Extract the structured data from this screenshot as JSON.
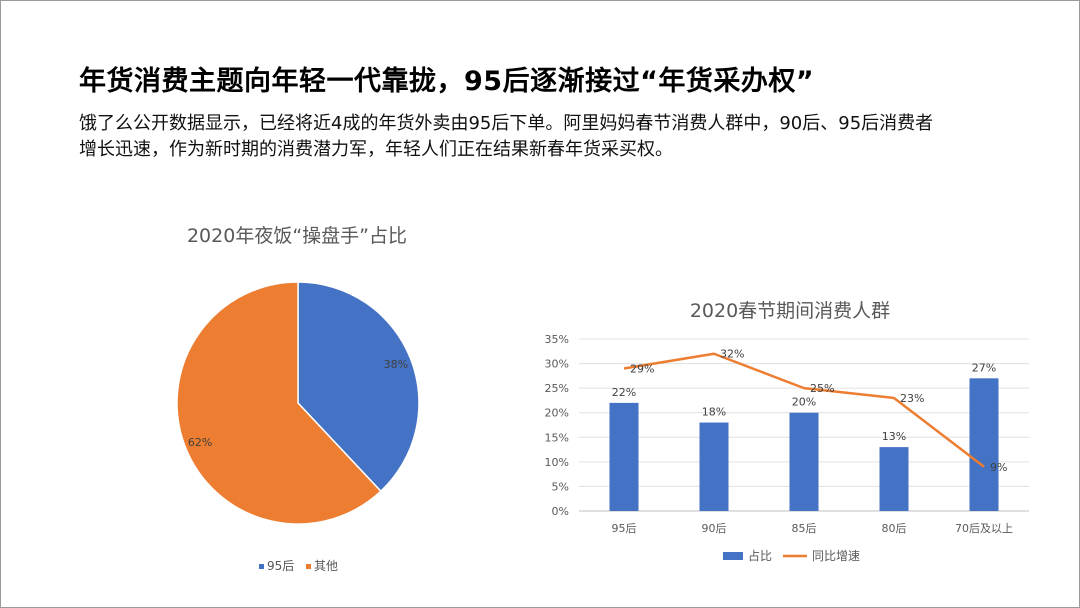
{
  "slide": {
    "headline": "年货消费主题向年轻一代靠拢，95后逐渐接过“年货采办权”",
    "paragraph_lines": [
      "饿了么公开数据显示，已经将近4成的年货外卖由95后下单。阿里妈妈春节消费人群中，90后、95后消费者",
      "增长迅速，作为新时期的消费潜力军，年轻人们正在结果新春年货采买权。"
    ]
  },
  "chart_data": [
    {
      "type": "pie",
      "title": "2020年夜饭“操盘手”占比",
      "slices": [
        {
          "name": "95后",
          "value": 38,
          "label": "38%",
          "color": "#4472C4"
        },
        {
          "name": "其他",
          "value": 62,
          "label": "62%",
          "color": "#ED7D31"
        }
      ],
      "legend_position": "bottom"
    },
    {
      "type": "bar",
      "title": "2020春节期间消费人群",
      "categories": [
        "95后",
        "90后",
        "85后",
        "80后",
        "70后及以上"
      ],
      "series": [
        {
          "name": "占比",
          "type": "bar",
          "color": "#4472C4",
          "values": [
            22,
            18,
            20,
            13,
            27
          ],
          "labels": [
            "22%",
            "18%",
            "20%",
            "13%",
            "27%"
          ]
        },
        {
          "name": "同比增速",
          "type": "line",
          "color": "#ED7D31",
          "values": [
            29,
            32,
            25,
            23,
            9
          ],
          "labels": [
            "29%",
            "32%",
            "25%",
            "23%",
            "9%"
          ]
        }
      ],
      "ylim": [
        0,
        35
      ],
      "yticks": [
        "0%",
        "5%",
        "10%",
        "15%",
        "20%",
        "25%",
        "30%",
        "35%"
      ],
      "grid": true,
      "legend_position": "bottom"
    }
  ]
}
